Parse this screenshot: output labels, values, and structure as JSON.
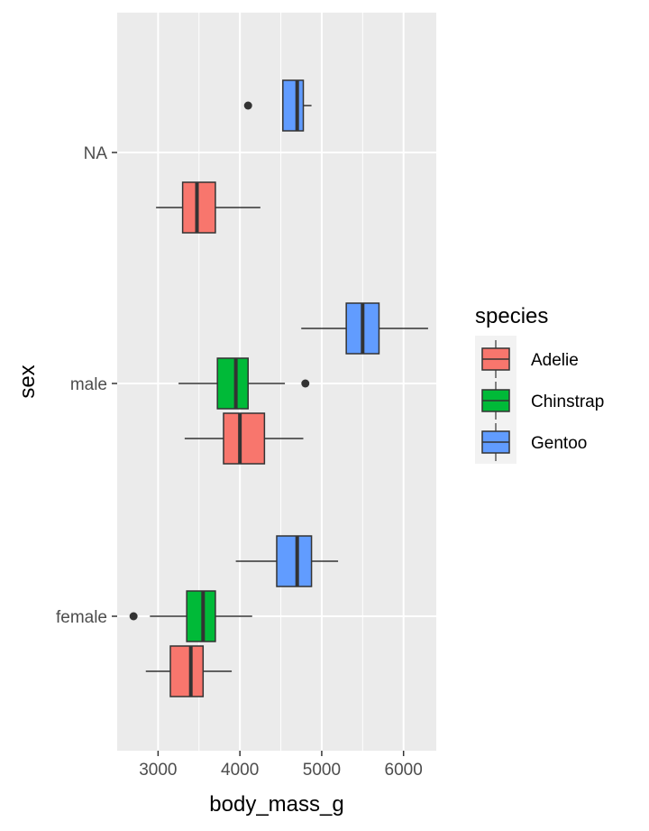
{
  "chart_data": {
    "type": "boxplot",
    "orientation": "horizontal",
    "xlabel": "body_mass_g",
    "ylabel": "sex",
    "xlim": [
      2500,
      6400
    ],
    "x_ticks": [
      3000,
      4000,
      5000,
      6000
    ],
    "categories": [
      "female",
      "male",
      "NA"
    ],
    "legend": {
      "title": "species",
      "position": "right",
      "entries": [
        {
          "name": "Adelie",
          "color": "#F8766D"
        },
        {
          "name": "Chinstrap",
          "color": "#00BA38"
        },
        {
          "name": "Gentoo",
          "color": "#619CFF"
        }
      ]
    },
    "series": [
      {
        "name": "Adelie",
        "color": "#F8766D",
        "boxes": [
          {
            "category": "female",
            "whisker_low": 2850,
            "q1": 3150,
            "median": 3400,
            "q3": 3550,
            "whisker_high": 3900,
            "outliers": []
          },
          {
            "category": "male",
            "whisker_low": 3325,
            "q1": 3800,
            "median": 4000,
            "q3": 4300,
            "whisker_high": 4775,
            "outliers": []
          },
          {
            "category": "NA",
            "whisker_low": 2975,
            "q1": 3300,
            "median": 3475,
            "q3": 3700,
            "whisker_high": 4250,
            "outliers": []
          }
        ]
      },
      {
        "name": "Chinstrap",
        "color": "#00BA38",
        "boxes": [
          {
            "category": "female",
            "whisker_low": 2900,
            "q1": 3350,
            "median": 3550,
            "q3": 3700,
            "whisker_high": 4150,
            "outliers": [
              2700
            ]
          },
          {
            "category": "male",
            "whisker_low": 3250,
            "q1": 3725,
            "median": 3950,
            "q3": 4100,
            "whisker_high": 4550,
            "outliers": [
              4800
            ]
          }
        ]
      },
      {
        "name": "Gentoo",
        "color": "#619CFF",
        "boxes": [
          {
            "category": "female",
            "whisker_low": 3950,
            "q1": 4450,
            "median": 4700,
            "q3": 4875,
            "whisker_high": 5200,
            "outliers": []
          },
          {
            "category": "male",
            "whisker_low": 4750,
            "q1": 5300,
            "median": 5500,
            "q3": 5700,
            "whisker_high": 6300,
            "outliers": []
          },
          {
            "category": "NA",
            "whisker_low": 4525,
            "q1": 4525,
            "median": 4700,
            "q3": 4775,
            "whisker_high": 4875,
            "outliers": [
              4100
            ]
          }
        ]
      }
    ]
  }
}
